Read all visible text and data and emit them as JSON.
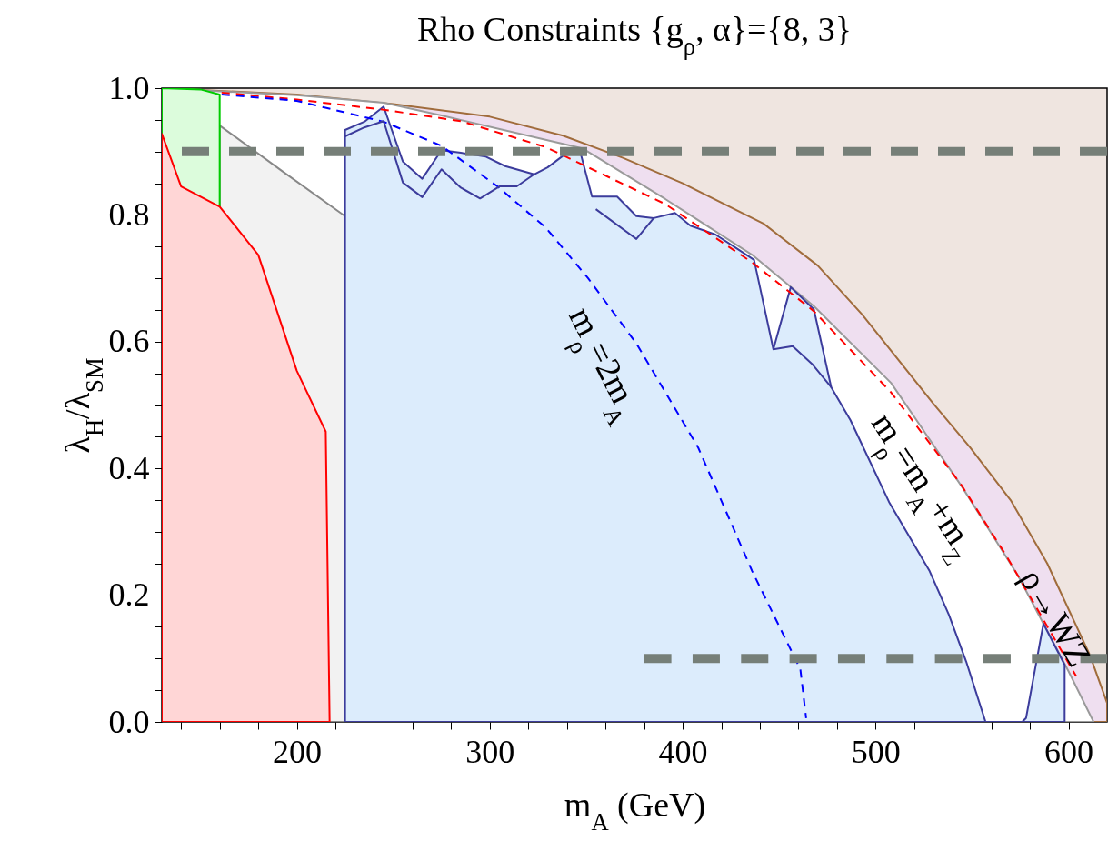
{
  "chart_data": {
    "type": "line",
    "title": "Rho Constraints {g$_{ρ}$, α}={8, 3}",
    "xlabel": "m$_{A}$ (GeV)",
    "ylabel": "λ$_{H}$/λ$_{SM}$",
    "xlim": [
      130,
      620
    ],
    "ylim": [
      0,
      1
    ],
    "xticks": [
      {
        "value": 140,
        "label": null
      },
      {
        "value": 160,
        "label": null
      },
      {
        "value": 180,
        "label": null
      },
      200,
      {
        "value": 220,
        "label": null
      },
      {
        "value": 240,
        "label": null
      },
      {
        "value": 260,
        "label": null
      },
      {
        "value": 280,
        "label": null
      },
      300,
      {
        "value": 320,
        "label": null
      },
      {
        "value": 340,
        "label": null
      },
      {
        "value": 360,
        "label": null
      },
      {
        "value": 380,
        "label": null
      },
      400,
      {
        "value": 420,
        "label": null
      },
      {
        "value": 440,
        "label": null
      },
      {
        "value": 460,
        "label": null
      },
      {
        "value": 480,
        "label": null
      },
      500,
      {
        "value": 520,
        "label": null
      },
      {
        "value": 540,
        "label": null
      },
      {
        "value": 560,
        "label": null
      },
      {
        "value": 580,
        "label": null
      },
      600
    ],
    "yticks": [
      {
        "value": 0,
        "label": "0.0"
      },
      {
        "value": 0.05,
        "label": null
      },
      {
        "value": 0.1,
        "label": null
      },
      {
        "value": 0.15,
        "label": null
      },
      0.2,
      {
        "value": 0.25,
        "label": null
      },
      {
        "value": 0.3,
        "label": null
      },
      {
        "value": 0.35,
        "label": null
      },
      0.4,
      {
        "value": 0.45,
        "label": null
      },
      {
        "value": 0.5,
        "label": null
      },
      {
        "value": 0.55,
        "label": null
      },
      0.6,
      {
        "value": 0.65,
        "label": null
      },
      {
        "value": 0.7,
        "label": null
      },
      {
        "value": 0.75,
        "label": null
      },
      0.8,
      {
        "value": 0.85,
        "label": null
      },
      {
        "value": 0.9,
        "label": null
      },
      {
        "value": 0.95,
        "label": null
      },
      {
        "value": 1,
        "label": "1.0"
      }
    ],
    "series": [
      {
        "type": "area",
        "color": "#efdff0",
        "x": [
          130,
          200,
          250,
          300,
          338,
          369,
          400,
          442,
          470,
          493,
          530,
          549,
          570,
          589,
          611,
          620
        ],
        "values": [
          1.0,
          0.99,
          0.975,
          0.955,
          0.925,
          0.89,
          0.85,
          0.786,
          0.72,
          0.643,
          0.502,
          0.433,
          0.35,
          0.25,
          0.106,
          0.03
        ]
      },
      {
        "type": "area",
        "color": "#ffffff",
        "x": [
          130,
          160,
          200,
          245,
          275,
          338,
          348,
          391,
          436,
          468,
          508,
          545,
          574,
          600,
          613
        ],
        "values": [
          1.0,
          0.995,
          0.989,
          0.977,
          0.957,
          0.912,
          0.905,
          0.825,
          0.737,
          0.656,
          0.535,
          0.37,
          0.23,
          0.08,
          0.0
        ]
      },
      {
        "type": "area",
        "color": "#f2f2f2",
        "x": [
          160,
          192,
          225
        ],
        "values": [
          0.941,
          0.87,
          0.798
        ]
      },
      {
        "type": "area",
        "color": "#dcfcdc",
        "x": [
          130,
          150,
          160
        ],
        "values": [
          1.0,
          0.998,
          0.99
        ]
      },
      {
        "type": "area",
        "color": "#dcecfc",
        "x": [
          225,
          235,
          245,
          255,
          265,
          275,
          285,
          298,
          308,
          323,
          330,
          340,
          347,
          353,
          366,
          376,
          385,
          396,
          404,
          417,
          427,
          437,
          447,
          456,
          468,
          477,
          487,
          507,
          528,
          538,
          547,
          557,
          576,
          578,
          587,
          598
        ],
        "values": [
          0.934,
          0.947,
          0.971,
          0.884,
          0.857,
          0.902,
          0.898,
          0.892,
          0.877,
          0.864,
          0.875,
          0.898,
          0.898,
          0.829,
          0.829,
          0.798,
          0.795,
          0.803,
          0.783,
          0.769,
          0.749,
          0.729,
          0.588,
          0.686,
          0.651,
          0.528,
          0.476,
          0.347,
          0.238,
          0.169,
          0.095,
          0.0,
          0.0,
          0.006,
          0.155,
          0.09
        ]
      },
      {
        "type": "area",
        "color": "#ffd6d6",
        "x": [
          130,
          140,
          160,
          180,
          200,
          215,
          217
        ],
        "values": [
          0.928,
          0.845,
          0.813,
          0.737,
          0.554,
          0.458,
          0.0
        ]
      },
      {
        "color": "#ff0000",
        "line_style": "dashed",
        "x": [
          161,
          200,
          245,
          285,
          329,
          391,
          436,
          468,
          508,
          544,
          568,
          604
        ],
        "values": [
          0.993,
          0.982,
          0.966,
          0.948,
          0.907,
          0.817,
          0.725,
          0.648,
          0.52,
          0.376,
          0.261,
          0.072
        ]
      },
      {
        "color": "#0000ff",
        "line_style": "dashed",
        "x": [
          161,
          200,
          245,
          275,
          304,
          329,
          351,
          376,
          408,
          436,
          461,
          464
        ],
        "values": [
          0.99,
          0.98,
          0.947,
          0.909,
          0.845,
          0.78,
          0.7,
          0.597,
          0.433,
          0.238,
          0.083,
          0.006
        ]
      },
      {
        "color": "#3c3c9c",
        "x": [
          225,
          235,
          245,
          255,
          265,
          275,
          285,
          295,
          305,
          314,
          323,
          340,
          355,
          376,
          385,
          400,
          447,
          457,
          467,
          477
        ],
        "values": [
          0.924,
          0.938,
          0.948,
          0.851,
          0.828,
          0.872,
          0.843,
          0.826,
          0.845,
          0.845,
          0.864,
          null,
          0.809,
          0.762,
          0.795,
          null,
          0.588,
          0.593,
          0.565,
          0.528
        ]
      },
      {
        "color": "#767f78",
        "line_style": "dashed",
        "x": [
          380,
          620
        ],
        "values": [
          0.1,
          0.1
        ]
      }
    ],
    "ref_lines": [
      {
        "axis": "y",
        "value": 0.9,
        "color": "#767f78",
        "line_style": "dashed"
      }
    ],
    "annotations": [
      "m$_{ρ}$=2m$_{A}$",
      "m$_{ρ}$=m$_{A}$+m$_{Z}$",
      "ρ→WZ"
    ]
  }
}
